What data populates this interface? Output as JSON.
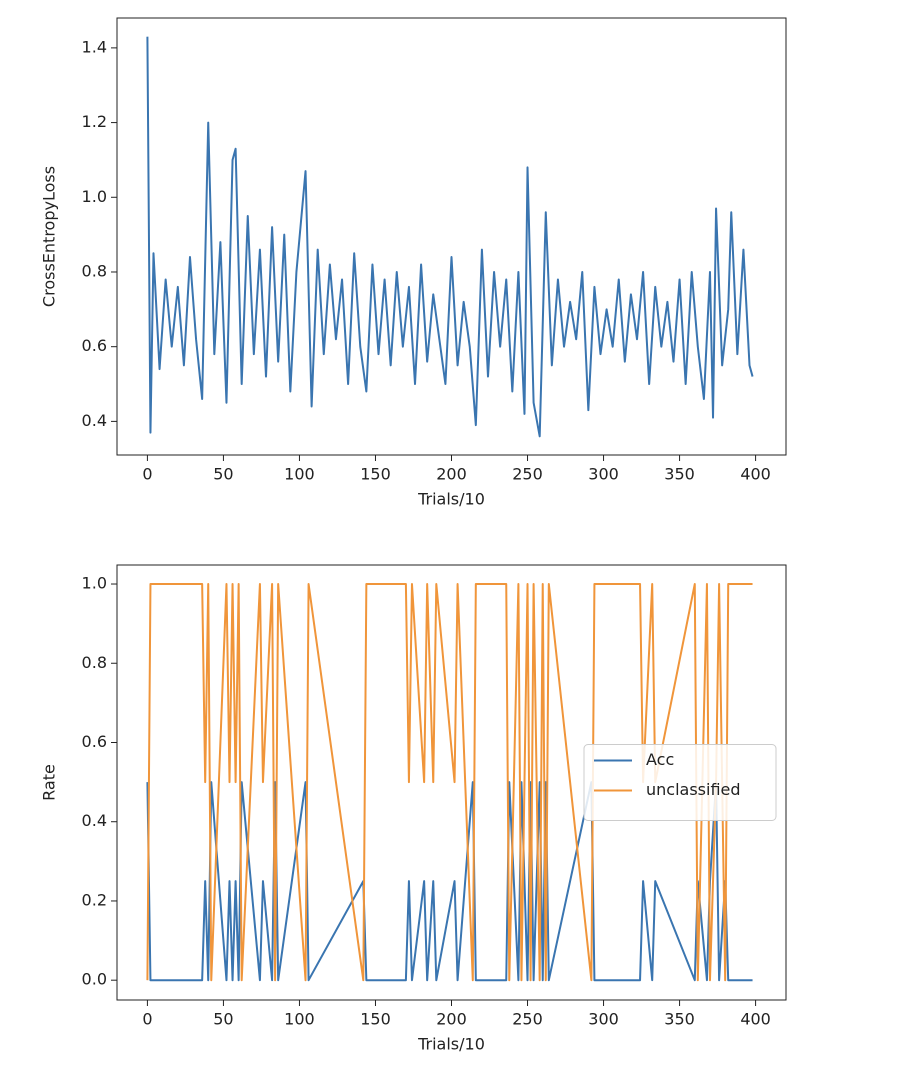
{
  "chart_data": [
    {
      "type": "line",
      "ylabel": "CrossEntropyLoss",
      "xlabel": "Trials/10",
      "x": [
        0,
        2,
        4,
        8,
        12,
        16,
        20,
        24,
        28,
        32,
        36,
        40,
        44,
        48,
        52,
        56,
        58,
        62,
        66,
        70,
        74,
        78,
        82,
        86,
        90,
        94,
        98,
        104,
        108,
        112,
        116,
        120,
        124,
        128,
        132,
        136,
        140,
        144,
        148,
        152,
        156,
        160,
        164,
        168,
        172,
        176,
        180,
        184,
        188,
        192,
        196,
        200,
        204,
        208,
        212,
        216,
        220,
        224,
        228,
        232,
        236,
        240,
        244,
        248,
        250,
        254,
        258,
        262,
        266,
        270,
        274,
        278,
        282,
        286,
        290,
        294,
        298,
        302,
        306,
        310,
        314,
        318,
        322,
        326,
        330,
        334,
        338,
        342,
        346,
        350,
        354,
        358,
        362,
        366,
        370,
        372,
        374,
        378,
        382,
        384,
        388,
        392,
        396,
        398
      ],
      "series": [
        {
          "color": "#3a75b0",
          "values": [
            1.43,
            0.37,
            0.85,
            0.54,
            0.78,
            0.6,
            0.76,
            0.55,
            0.84,
            0.62,
            0.46,
            1.2,
            0.58,
            0.88,
            0.45,
            1.1,
            1.13,
            0.5,
            0.95,
            0.58,
            0.86,
            0.52,
            0.92,
            0.56,
            0.9,
            0.48,
            0.8,
            1.07,
            0.44,
            0.86,
            0.58,
            0.82,
            0.62,
            0.78,
            0.5,
            0.85,
            0.6,
            0.48,
            0.82,
            0.58,
            0.78,
            0.55,
            0.8,
            0.6,
            0.76,
            0.5,
            0.82,
            0.56,
            0.74,
            0.62,
            0.5,
            0.84,
            0.55,
            0.72,
            0.6,
            0.39,
            0.86,
            0.52,
            0.8,
            0.6,
            0.78,
            0.48,
            0.8,
            0.42,
            1.08,
            0.45,
            0.36,
            0.96,
            0.55,
            0.78,
            0.6,
            0.72,
            0.62,
            0.8,
            0.43,
            0.76,
            0.58,
            0.7,
            0.6,
            0.78,
            0.56,
            0.74,
            0.62,
            0.8,
            0.5,
            0.76,
            0.6,
            0.72,
            0.56,
            0.78,
            0.5,
            0.8,
            0.6,
            0.46,
            0.8,
            0.41,
            0.97,
            0.55,
            0.7,
            0.96,
            0.58,
            0.86,
            0.55,
            0.52
          ]
        }
      ],
      "xlim": [
        -20,
        420
      ],
      "ylim": [
        0.31,
        1.48
      ],
      "xticks": [
        0,
        50,
        100,
        150,
        200,
        250,
        300,
        350,
        400
      ],
      "yticks": [
        0.4,
        0.6,
        0.8,
        {
          "value": 1,
          "label": "1.0"
        },
        1.2,
        1.4
      ]
    },
    {
      "type": "line",
      "ylabel": "Rate",
      "xlabel": "Trials/10",
      "legend": "center right",
      "x": [
        0,
        2,
        4,
        6,
        36,
        38,
        40,
        42,
        52,
        54,
        56,
        58,
        60,
        62,
        74,
        76,
        82,
        84,
        86,
        104,
        106,
        142,
        144,
        170,
        172,
        174,
        182,
        184,
        188,
        190,
        202,
        204,
        214,
        216,
        236,
        238,
        244,
        246,
        250,
        252,
        254,
        256,
        258,
        260,
        262,
        264,
        292,
        294,
        324,
        326,
        332,
        334,
        360,
        362,
        368,
        370,
        374,
        376,
        380,
        382,
        398
      ],
      "series": [
        {
          "name": "Acc",
          "color": "#3a75b0",
          "values": [
            0.5,
            0,
            0,
            0,
            0,
            0.25,
            0,
            0.5,
            0,
            0.25,
            0,
            0.25,
            0,
            0.5,
            0,
            0.25,
            0,
            0.5,
            0,
            0.5,
            0,
            0.25,
            0,
            0,
            0.25,
            0,
            0.25,
            0,
            0.25,
            0,
            0.25,
            0,
            0.5,
            0,
            0,
            0.5,
            0,
            0.5,
            0,
            0.5,
            0,
            0.25,
            0.5,
            0,
            0.5,
            0,
            0.5,
            0,
            0,
            0.25,
            0,
            0.25,
            0,
            0.25,
            0,
            0.25,
            0.5,
            0,
            0.25,
            0,
            0
          ]
        },
        {
          "name": "unclassified",
          "color": "#f0953a",
          "values": [
            0,
            1,
            1,
            1,
            1,
            0.5,
            1,
            0,
            1,
            0.5,
            1,
            0.5,
            1,
            0,
            1,
            0.5,
            1,
            0,
            1,
            0,
            1,
            0,
            1,
            1,
            0.5,
            1,
            0.5,
            1,
            0.5,
            1,
            0.5,
            1,
            0,
            1,
            1,
            0,
            1,
            0,
            1,
            0,
            1,
            0.5,
            0,
            1,
            0,
            1,
            0,
            1,
            1,
            0.5,
            1,
            0.5,
            1,
            0,
            1,
            0,
            0.5,
            1,
            0,
            1,
            1
          ]
        }
      ],
      "xlim": [
        -20,
        420
      ],
      "ylim": [
        -0.05,
        1.048
      ],
      "xticks": [
        0,
        50,
        100,
        150,
        200,
        250,
        300,
        350,
        400
      ],
      "yticks": [
        {
          "value": 0,
          "label": "0.0"
        },
        0.2,
        0.4,
        0.6,
        0.8,
        {
          "value": 1,
          "label": "1.0"
        }
      ]
    }
  ]
}
